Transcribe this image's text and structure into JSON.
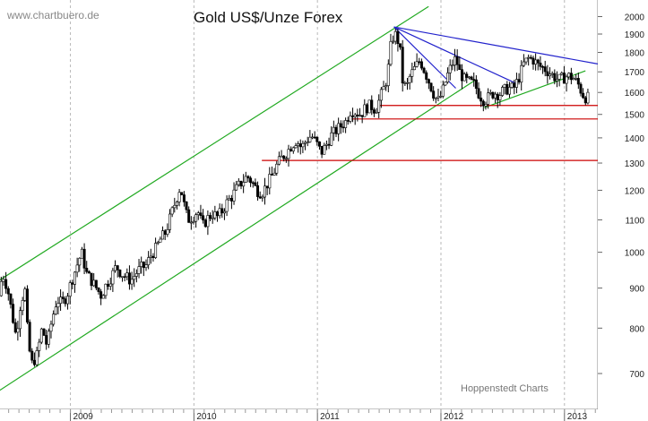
{
  "header": {
    "watermark": "www.chartbuero.de",
    "title": "Gold US$/Unze Forex",
    "credit": "Hoppenstedt Charts"
  },
  "chart_data": {
    "type": "candlestick",
    "title": "Gold US$/Unze Forex",
    "y_scale": "log",
    "ylim": [
      630,
      2100
    ],
    "xlim": [
      2008.43,
      2013.27
    ],
    "y_ticks": [
      700,
      800,
      900,
      1000,
      1100,
      1200,
      1300,
      1400,
      1500,
      1600,
      1700,
      1800,
      1900,
      2000
    ],
    "y_tick_labels": [
      "700",
      "800",
      "900",
      "1000",
      "1100",
      "1200",
      "1300",
      "1400",
      "1500",
      "1600",
      "1700",
      "1800",
      "1900",
      "2000"
    ],
    "x_ticks": [
      2009,
      2010,
      2011,
      2012,
      2013
    ],
    "x_tick_labels": [
      "2009",
      "2010",
      "2011",
      "2012",
      "2013"
    ],
    "grid": "vertical dashed at year starts",
    "price_path": [
      [
        2008.43,
        880
      ],
      [
        2008.46,
        940
      ],
      [
        2008.5,
        900
      ],
      [
        2008.54,
        830
      ],
      [
        2008.57,
        780
      ],
      [
        2008.6,
        850
      ],
      [
        2008.64,
        900
      ],
      [
        2008.67,
        760
      ],
      [
        2008.7,
        720
      ],
      [
        2008.74,
        740
      ],
      [
        2008.78,
        800
      ],
      [
        2008.82,
        760
      ],
      [
        2008.86,
        820
      ],
      [
        2008.9,
        870
      ],
      [
        2008.94,
        860
      ],
      [
        2008.98,
        880
      ],
      [
        2009.02,
        920
      ],
      [
        2009.06,
        960
      ],
      [
        2009.1,
        1000
      ],
      [
        2009.14,
        940
      ],
      [
        2009.18,
        920
      ],
      [
        2009.22,
        900
      ],
      [
        2009.26,
        880
      ],
      [
        2009.3,
        910
      ],
      [
        2009.34,
        930
      ],
      [
        2009.38,
        960
      ],
      [
        2009.42,
        940
      ],
      [
        2009.46,
        930
      ],
      [
        2009.5,
        920
      ],
      [
        2009.54,
        940
      ],
      [
        2009.58,
        955
      ],
      [
        2009.62,
        960
      ],
      [
        2009.66,
        990
      ],
      [
        2009.7,
        1010
      ],
      [
        2009.74,
        1040
      ],
      [
        2009.78,
        1060
      ],
      [
        2009.82,
        1110
      ],
      [
        2009.86,
        1160
      ],
      [
        2009.9,
        1215
      ],
      [
        2009.93,
        1150
      ],
      [
        2009.96,
        1100
      ],
      [
        2010.0,
        1110
      ],
      [
        2010.04,
        1130
      ],
      [
        2010.08,
        1080
      ],
      [
        2010.12,
        1105
      ],
      [
        2010.16,
        1120
      ],
      [
        2010.2,
        1110
      ],
      [
        2010.24,
        1130
      ],
      [
        2010.28,
        1160
      ],
      [
        2010.32,
        1180
      ],
      [
        2010.36,
        1210
      ],
      [
        2010.4,
        1230
      ],
      [
        2010.44,
        1250
      ],
      [
        2010.48,
        1230
      ],
      [
        2010.52,
        1200
      ],
      [
        2010.56,
        1190
      ],
      [
        2010.6,
        1220
      ],
      [
        2010.64,
        1250
      ],
      [
        2010.68,
        1290
      ],
      [
        2010.72,
        1320
      ],
      [
        2010.76,
        1340
      ],
      [
        2010.8,
        1370
      ],
      [
        2010.84,
        1390
      ],
      [
        2010.88,
        1360
      ],
      [
        2010.92,
        1390
      ],
      [
        2010.96,
        1410
      ],
      [
        2011.0,
        1380
      ],
      [
        2011.04,
        1340
      ],
      [
        2011.08,
        1370
      ],
      [
        2011.12,
        1410
      ],
      [
        2011.16,
        1430
      ],
      [
        2011.2,
        1450
      ],
      [
        2011.24,
        1470
      ],
      [
        2011.28,
        1520
      ],
      [
        2011.32,
        1510
      ],
      [
        2011.36,
        1500
      ],
      [
        2011.4,
        1530
      ],
      [
        2011.44,
        1540
      ],
      [
        2011.48,
        1520
      ],
      [
        2011.52,
        1580
      ],
      [
        2011.56,
        1640
      ],
      [
        2011.58,
        1700
      ],
      [
        2011.6,
        1820
      ],
      [
        2011.62,
        1880
      ],
      [
        2011.65,
        1900
      ],
      [
        2011.68,
        1800
      ],
      [
        2011.7,
        1650
      ],
      [
        2011.73,
        1620
      ],
      [
        2011.76,
        1680
      ],
      [
        2011.8,
        1720
      ],
      [
        2011.84,
        1760
      ],
      [
        2011.88,
        1700
      ],
      [
        2011.92,
        1640
      ],
      [
        2011.96,
        1580
      ],
      [
        2011.99,
        1560
      ],
      [
        2012.02,
        1600
      ],
      [
        2012.06,
        1680
      ],
      [
        2012.1,
        1740
      ],
      [
        2012.13,
        1770
      ],
      [
        2012.16,
        1700
      ],
      [
        2012.2,
        1660
      ],
      [
        2012.24,
        1650
      ],
      [
        2012.28,
        1640
      ],
      [
        2012.32,
        1590
      ],
      [
        2012.36,
        1560
      ],
      [
        2012.4,
        1580
      ],
      [
        2012.44,
        1600
      ],
      [
        2012.48,
        1590
      ],
      [
        2012.52,
        1610
      ],
      [
        2012.56,
        1620
      ],
      [
        2012.6,
        1620
      ],
      [
        2012.64,
        1670
      ],
      [
        2012.68,
        1740
      ],
      [
        2012.72,
        1770
      ],
      [
        2012.76,
        1760
      ],
      [
        2012.8,
        1730
      ],
      [
        2012.84,
        1720
      ],
      [
        2012.88,
        1700
      ],
      [
        2012.92,
        1680
      ],
      [
        2012.96,
        1660
      ],
      [
        2013.0,
        1670
      ],
      [
        2013.04,
        1680
      ],
      [
        2013.08,
        1670
      ],
      [
        2013.12,
        1640
      ],
      [
        2013.15,
        1600
      ],
      [
        2013.17,
        1580
      ],
      [
        2013.19,
        1575
      ]
    ],
    "trendlines": [
      {
        "color": "#22aa22",
        "points": [
          [
            2008.42,
            665
          ],
          [
            2012.28,
            1660
          ]
        ]
      },
      {
        "color": "#22aa22",
        "points": [
          [
            2008.42,
            920
          ],
          [
            2011.9,
            2060
          ]
        ]
      },
      {
        "color": "#22aa22",
        "points": [
          [
            2012.35,
            1530
          ],
          [
            2013.17,
            1705
          ]
        ]
      },
      {
        "color": "#2222cc",
        "points": [
          [
            2011.62,
            1940
          ],
          [
            2013.27,
            1740
          ]
        ]
      },
      {
        "color": "#2222cc",
        "points": [
          [
            2011.62,
            1940
          ],
          [
            2012.62,
            1640
          ]
        ]
      },
      {
        "color": "#2222cc",
        "points": [
          [
            2011.62,
            1940
          ],
          [
            2012.12,
            1620
          ]
        ]
      },
      {
        "color": "#cc0000",
        "points": [
          [
            2010.55,
            1310
          ],
          [
            2013.27,
            1310
          ]
        ]
      },
      {
        "color": "#cc0000",
        "points": [
          [
            2011.28,
            1480
          ],
          [
            2013.27,
            1480
          ]
        ]
      },
      {
        "color": "#cc0000",
        "points": [
          [
            2011.5,
            1540
          ],
          [
            2013.27,
            1540
          ]
        ]
      }
    ]
  }
}
